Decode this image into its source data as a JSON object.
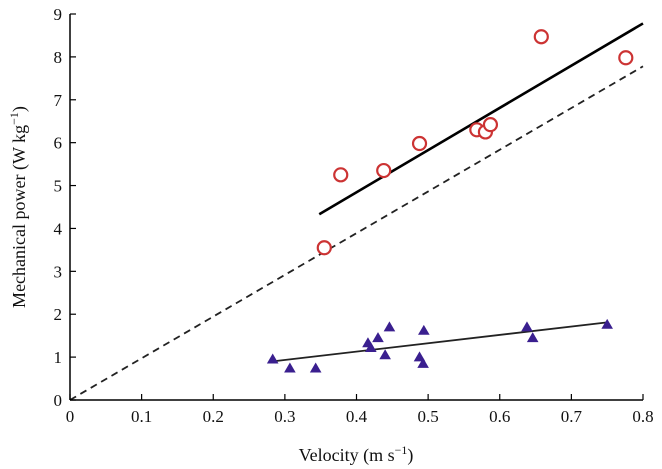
{
  "chart_data": {
    "type": "scatter",
    "xlabel": "Velocity (m s",
    "xlabel_sup": "−1",
    "xlabel_end": ")",
    "ylabel": "Mechanical power (W kg",
    "ylabel_sup": "−1",
    "ylabel_end": ")",
    "xlim": [
      0,
      0.8
    ],
    "ylim": [
      0,
      9
    ],
    "x_ticks": [
      0,
      0.1,
      0.2,
      0.3,
      0.4,
      0.5,
      0.6,
      0.7,
      0.8
    ],
    "x_tick_labels": [
      "0",
      "0.1",
      "0.2",
      "0.3",
      "0.4",
      "0.5",
      "0.6",
      "0.7",
      "0.8"
    ],
    "y_ticks": [
      0,
      1,
      2,
      3,
      4,
      5,
      6,
      7,
      8,
      9
    ],
    "y_tick_labels": [
      "0",
      "1",
      "2",
      "3",
      "4",
      "5",
      "6",
      "7",
      "8",
      "9"
    ],
    "grid": false,
    "legend": false,
    "series": [
      {
        "marker": "open-circle",
        "color": "#cc3333",
        "points": [
          {
            "x": 0.355,
            "y": 3.55
          },
          {
            "x": 0.378,
            "y": 5.25
          },
          {
            "x": 0.438,
            "y": 5.35
          },
          {
            "x": 0.488,
            "y": 5.98
          },
          {
            "x": 0.568,
            "y": 6.3
          },
          {
            "x": 0.58,
            "y": 6.25
          },
          {
            "x": 0.587,
            "y": 6.42
          },
          {
            "x": 0.658,
            "y": 8.47
          },
          {
            "x": 0.776,
            "y": 7.98
          }
        ]
      },
      {
        "marker": "filled-triangle",
        "color": "#3a1f8f",
        "points": [
          {
            "x": 0.283,
            "y": 0.95
          },
          {
            "x": 0.307,
            "y": 0.74
          },
          {
            "x": 0.343,
            "y": 0.74
          },
          {
            "x": 0.416,
            "y": 1.33
          },
          {
            "x": 0.42,
            "y": 1.22
          },
          {
            "x": 0.43,
            "y": 1.45
          },
          {
            "x": 0.44,
            "y": 1.05
          },
          {
            "x": 0.446,
            "y": 1.7
          },
          {
            "x": 0.488,
            "y": 1.0
          },
          {
            "x": 0.493,
            "y": 0.85
          },
          {
            "x": 0.494,
            "y": 1.62
          },
          {
            "x": 0.638,
            "y": 1.7
          },
          {
            "x": 0.646,
            "y": 1.45
          },
          {
            "x": 0.75,
            "y": 1.76
          }
        ]
      }
    ],
    "lines": [
      {
        "style": "solid",
        "color": "#000000",
        "width": 2.6,
        "x": [
          0.348,
          0.8
        ],
        "y": [
          4.33,
          8.78
        ]
      },
      {
        "style": "dashed",
        "color": "#222222",
        "width": 1.8,
        "x": [
          0,
          0.8
        ],
        "y": [
          0,
          7.78
        ]
      },
      {
        "style": "solid",
        "color": "#222222",
        "width": 1.8,
        "x": [
          0.283,
          0.75
        ],
        "y": [
          0.9,
          1.81
        ]
      }
    ]
  }
}
